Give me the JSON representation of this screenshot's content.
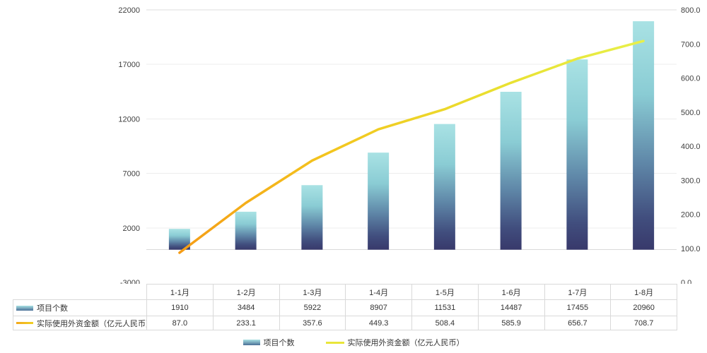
{
  "chart_data": {
    "type": "combo",
    "title": "",
    "categories": [
      "1-1月",
      "1-2月",
      "1-3月",
      "1-4月",
      "1-5月",
      "1-6月",
      "1-7月",
      "1-8月"
    ],
    "series": [
      {
        "name": "项目个数",
        "type": "bar",
        "axis": "left",
        "values": [
          1910,
          3484,
          5922,
          8907,
          11531,
          14487,
          17455,
          20960
        ]
      },
      {
        "name": "实际使用外资金额（亿元人民币）",
        "type": "line",
        "axis": "right",
        "values": [
          87.0,
          233.1,
          357.6,
          449.3,
          508.4,
          585.9,
          656.7,
          708.7
        ]
      }
    ],
    "left_axis": {
      "min": -3000,
      "max": 22000,
      "step": 5000,
      "tick_labels": [
        "-3000",
        "2000",
        "7000",
        "12000",
        "17000",
        "22000"
      ]
    },
    "right_axis": {
      "min": 0,
      "max": 800,
      "step": 100,
      "tick_labels": [
        "0.0",
        "100.0",
        "200.0",
        "300.0",
        "400.0",
        "500.0",
        "600.0",
        "700.0",
        "800.0"
      ]
    },
    "grid": true,
    "legend_position": "bottom",
    "colors": {
      "bar_gradient_top": "#a9e2e4",
      "bar_gradient_mid1": "#8accd4",
      "bar_gradient_mid2": "#5f87a8",
      "bar_gradient_mid3": "#414e7e",
      "bar_gradient_bottom": "#38396b",
      "line_start": "#f59c16",
      "line_mid1": "#f3c51e",
      "line_mid2": "#e9e030",
      "line_end": "#e8f04a",
      "gridline": "#ececec",
      "top_gridline": "#dcdcdc",
      "zero_line": "#dadada"
    }
  },
  "table": {
    "rows": [
      {
        "label": "项目个数",
        "swatch": "bar",
        "values": [
          "1910",
          "3484",
          "5922",
          "8907",
          "11531",
          "14487",
          "17455",
          "20960"
        ]
      },
      {
        "label": "实际使用外资金额（亿元人民币）",
        "swatch": "line",
        "values": [
          "87.0",
          "233.1",
          "357.6",
          "449.3",
          "508.4",
          "585.9",
          "656.7",
          "708.7"
        ]
      }
    ]
  },
  "legend": {
    "items": [
      {
        "label": "项目个数",
        "type": "bar"
      },
      {
        "label": "实际使用外资金额（亿元人民币）",
        "type": "line"
      }
    ]
  }
}
